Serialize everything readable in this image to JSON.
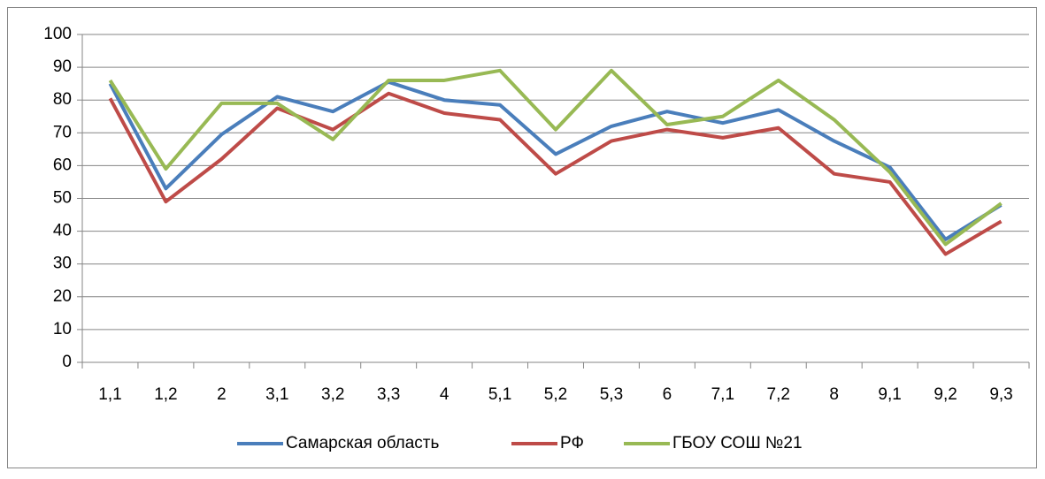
{
  "chart_data": {
    "type": "line",
    "categories": [
      "1,1",
      "1,2",
      "2",
      "3,1",
      "3,2",
      "3,3",
      "4",
      "5,1",
      "5,2",
      "5,3",
      "6",
      "7,1",
      "7,2",
      "8",
      "9,1",
      "9,2",
      "9,3"
    ],
    "series": [
      {
        "name": "Самарская область",
        "color": "#4a7ebb",
        "values": [
          85,
          53,
          69.5,
          81,
          76.5,
          85.5,
          80,
          78.5,
          63.5,
          72,
          76.5,
          73,
          77,
          67.5,
          59.5,
          37.5,
          48
        ]
      },
      {
        "name": "РФ",
        "color": "#be4b48",
        "values": [
          80.5,
          49,
          62,
          77.5,
          71,
          82,
          76,
          74,
          57.5,
          67.5,
          71,
          68.5,
          71.5,
          57.5,
          55,
          33,
          43
        ]
      },
      {
        "name": "ГБОУ СОШ №21",
        "color": "#98b954",
        "values": [
          86,
          59,
          79,
          79,
          68,
          86,
          86,
          89,
          71,
          89,
          72.5,
          75,
          86,
          74,
          58,
          36,
          48.5
        ]
      }
    ],
    "ylim": [
      0,
      100
    ],
    "yticks": [
      0,
      10,
      20,
      30,
      40,
      50,
      60,
      70,
      80,
      90,
      100
    ],
    "grid": true,
    "legend": "bottom"
  }
}
